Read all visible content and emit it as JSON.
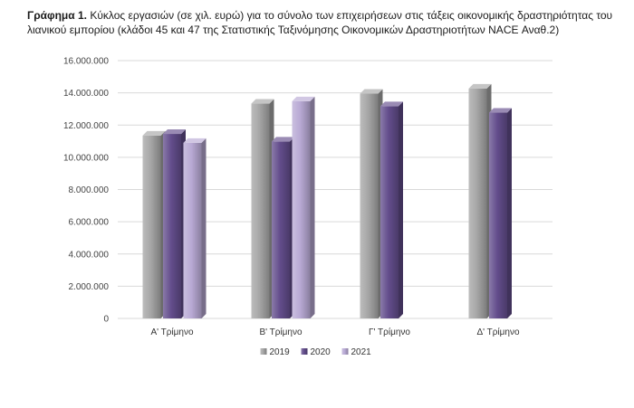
{
  "caption": {
    "label": "Γράφημα 1.",
    "text": "Κύκλος εργασιών (σε χιλ. ευρώ) για το σύνολο των επιχειρήσεων στις τάξεις οικονομικής δραστηριότητας του λιανικού εμπορίου (κλάδοι 45 και 47 της Στατιστικής Ταξινόμησης Οικονομικών Δραστηριοτήτων NACE Αναθ.2)"
  },
  "chart_data": {
    "type": "bar",
    "categories": [
      "Α' Τρίμηνο",
      "Β' Τρίμηνο",
      "Γ' Τρίμηνο",
      "Δ' Τρίμηνο"
    ],
    "series": [
      {
        "name": "2019",
        "values": [
          11350000,
          13330000,
          13950000,
          14270000
        ],
        "color": "#a6a6a6"
      },
      {
        "name": "2020",
        "values": [
          11450000,
          10980000,
          13170000,
          12770000
        ],
        "color": "#634d8c"
      },
      {
        "name": "2021",
        "values": [
          10900000,
          13480000,
          null,
          null
        ],
        "color": "#b8a9d4"
      }
    ],
    "ylim": [
      0,
      16000000
    ],
    "yticks": [
      0,
      2000000,
      4000000,
      6000000,
      8000000,
      10000000,
      12000000,
      14000000,
      16000000
    ],
    "ytick_labels": [
      "0",
      "2.000.000",
      "4.000.000",
      "6.000.000",
      "8.000.000",
      "10.000.000",
      "12.000.000",
      "14.000.000",
      "16.000.000"
    ],
    "grid": true,
    "legend_position": "bottom",
    "style": "3d-bars"
  }
}
